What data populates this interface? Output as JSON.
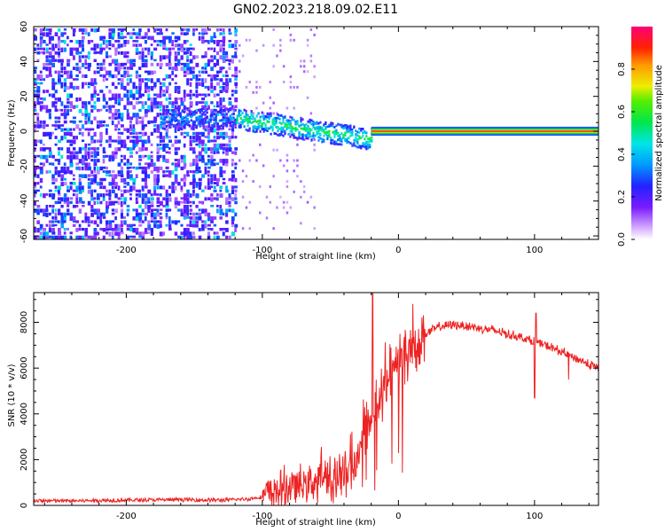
{
  "figure_title": "GN02.2023.218.09.02.E11",
  "chart_data": [
    {
      "type": "heatmap",
      "title": "",
      "xlabel": "Height of straight line (km)",
      "ylabel": "Frequency (Hz)",
      "xlim": [
        -268,
        147
      ],
      "ylim": [
        -62,
        60
      ],
      "x_ticks": [
        -200,
        -100,
        0,
        100
      ],
      "x_tick_labels": [
        "-200",
        "-100",
        "0",
        "100"
      ],
      "y_ticks": [
        60,
        40,
        20,
        0,
        -20,
        -40,
        -60
      ],
      "y_tick_labels": [
        "60",
        "40",
        "20",
        "0",
        "-20",
        "-40",
        "-60"
      ],
      "colorbar": {
        "label": "Normalized spectral amplitude",
        "range": [
          0,
          1
        ],
        "ticks": [
          0.0,
          0.2,
          0.4,
          0.6,
          0.8
        ],
        "tick_labels": [
          "0.0",
          "0.2",
          "0.4",
          "0.6",
          "0.8"
        ],
        "colormap": "rainbow (white-purple-blue-cyan-green-yellow-orange-red-pink)"
      },
      "regions": [
        {
          "name": "noise",
          "x_range": [
            -268,
            -120
          ],
          "freq_range": [
            -62,
            60
          ],
          "amplitude": 0.15
        },
        {
          "name": "transition",
          "x_range": [
            -120,
            -20
          ],
          "freq_center": [
            8,
            -4
          ],
          "amplitude": 0.45
        },
        {
          "name": "carrier-line",
          "x_range": [
            -20,
            147
          ],
          "freq": 0,
          "amplitude": 1.0
        }
      ]
    },
    {
      "type": "line",
      "title": "",
      "xlabel": "Height of straight line (km)",
      "ylabel": "SNR (10 * v/v)",
      "xlim": [
        -268,
        147
      ],
      "ylim": [
        0,
        9300
      ],
      "x_ticks": [
        -200,
        -100,
        0,
        100
      ],
      "x_tick_labels": [
        "-200",
        "-100",
        "0",
        "100"
      ],
      "y_ticks": [
        0,
        2000,
        4000,
        6000,
        8000
      ],
      "y_tick_labels": [
        "0",
        "2000",
        "4000",
        "6000",
        "8000"
      ],
      "series": [
        {
          "color": "#ee2222",
          "x": [
            -268,
            -240,
            -200,
            -160,
            -130,
            -110,
            -100,
            -90,
            -80,
            -70,
            -60,
            -50,
            -40,
            -30,
            -25,
            -20,
            -15,
            -10,
            -5,
            0,
            5,
            10,
            20,
            30,
            40,
            50,
            60,
            70,
            80,
            90,
            100,
            110,
            120,
            130,
            140,
            147
          ],
          "y": [
            200,
            200,
            230,
            250,
            230,
            280,
            380,
            600,
            800,
            900,
            1100,
            1300,
            1600,
            2300,
            3200,
            4000,
            4700,
            5300,
            5800,
            6300,
            6700,
            7000,
            7500,
            7800,
            7900,
            7850,
            7750,
            7650,
            7500,
            7350,
            7150,
            6950,
            6700,
            6450,
            6150,
            6000
          ]
        }
      ]
    }
  ]
}
